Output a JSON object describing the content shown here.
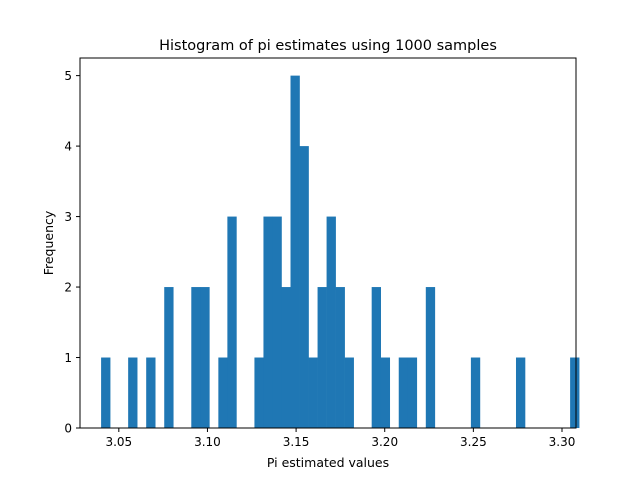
{
  "chart_data": {
    "type": "bar",
    "title": "Histogram of pi estimates using 1000 samples",
    "xlabel": "Pi estimated values",
    "ylabel": "Frequency",
    "xlim": [
      3.0281,
      3.3079
    ],
    "ylim": [
      0,
      5.25
    ],
    "xticks": [
      {
        "value": 3.05,
        "label": "3.05"
      },
      {
        "value": 3.1,
        "label": "3.10"
      },
      {
        "value": 3.15,
        "label": "3.15"
      },
      {
        "value": 3.2,
        "label": "3.20"
      },
      {
        "value": 3.25,
        "label": "3.25"
      },
      {
        "value": 3.3,
        "label": "3.30"
      }
    ],
    "yticks": [
      {
        "value": 0,
        "label": "0"
      },
      {
        "value": 1,
        "label": "1"
      },
      {
        "value": 2,
        "label": "2"
      },
      {
        "value": 3,
        "label": "3"
      },
      {
        "value": 4,
        "label": "4"
      },
      {
        "value": 5,
        "label": "5"
      }
    ],
    "bin_start": 3.04,
    "bin_width": 0.005088,
    "counts": [
      1,
      0,
      0,
      1,
      0,
      1,
      0,
      2,
      0,
      0,
      2,
      2,
      0,
      1,
      3,
      0,
      0,
      1,
      3,
      3,
      2,
      5,
      4,
      1,
      2,
      3,
      2,
      1,
      0,
      0,
      2,
      1,
      0,
      1,
      1,
      0,
      2,
      0,
      0,
      0,
      0,
      1,
      0,
      0,
      0,
      0,
      1,
      0,
      0,
      0,
      0,
      0,
      1
    ],
    "grid": false,
    "legend": "none",
    "colors": {
      "bar": "#1f77b4",
      "axis": "#000000"
    }
  }
}
